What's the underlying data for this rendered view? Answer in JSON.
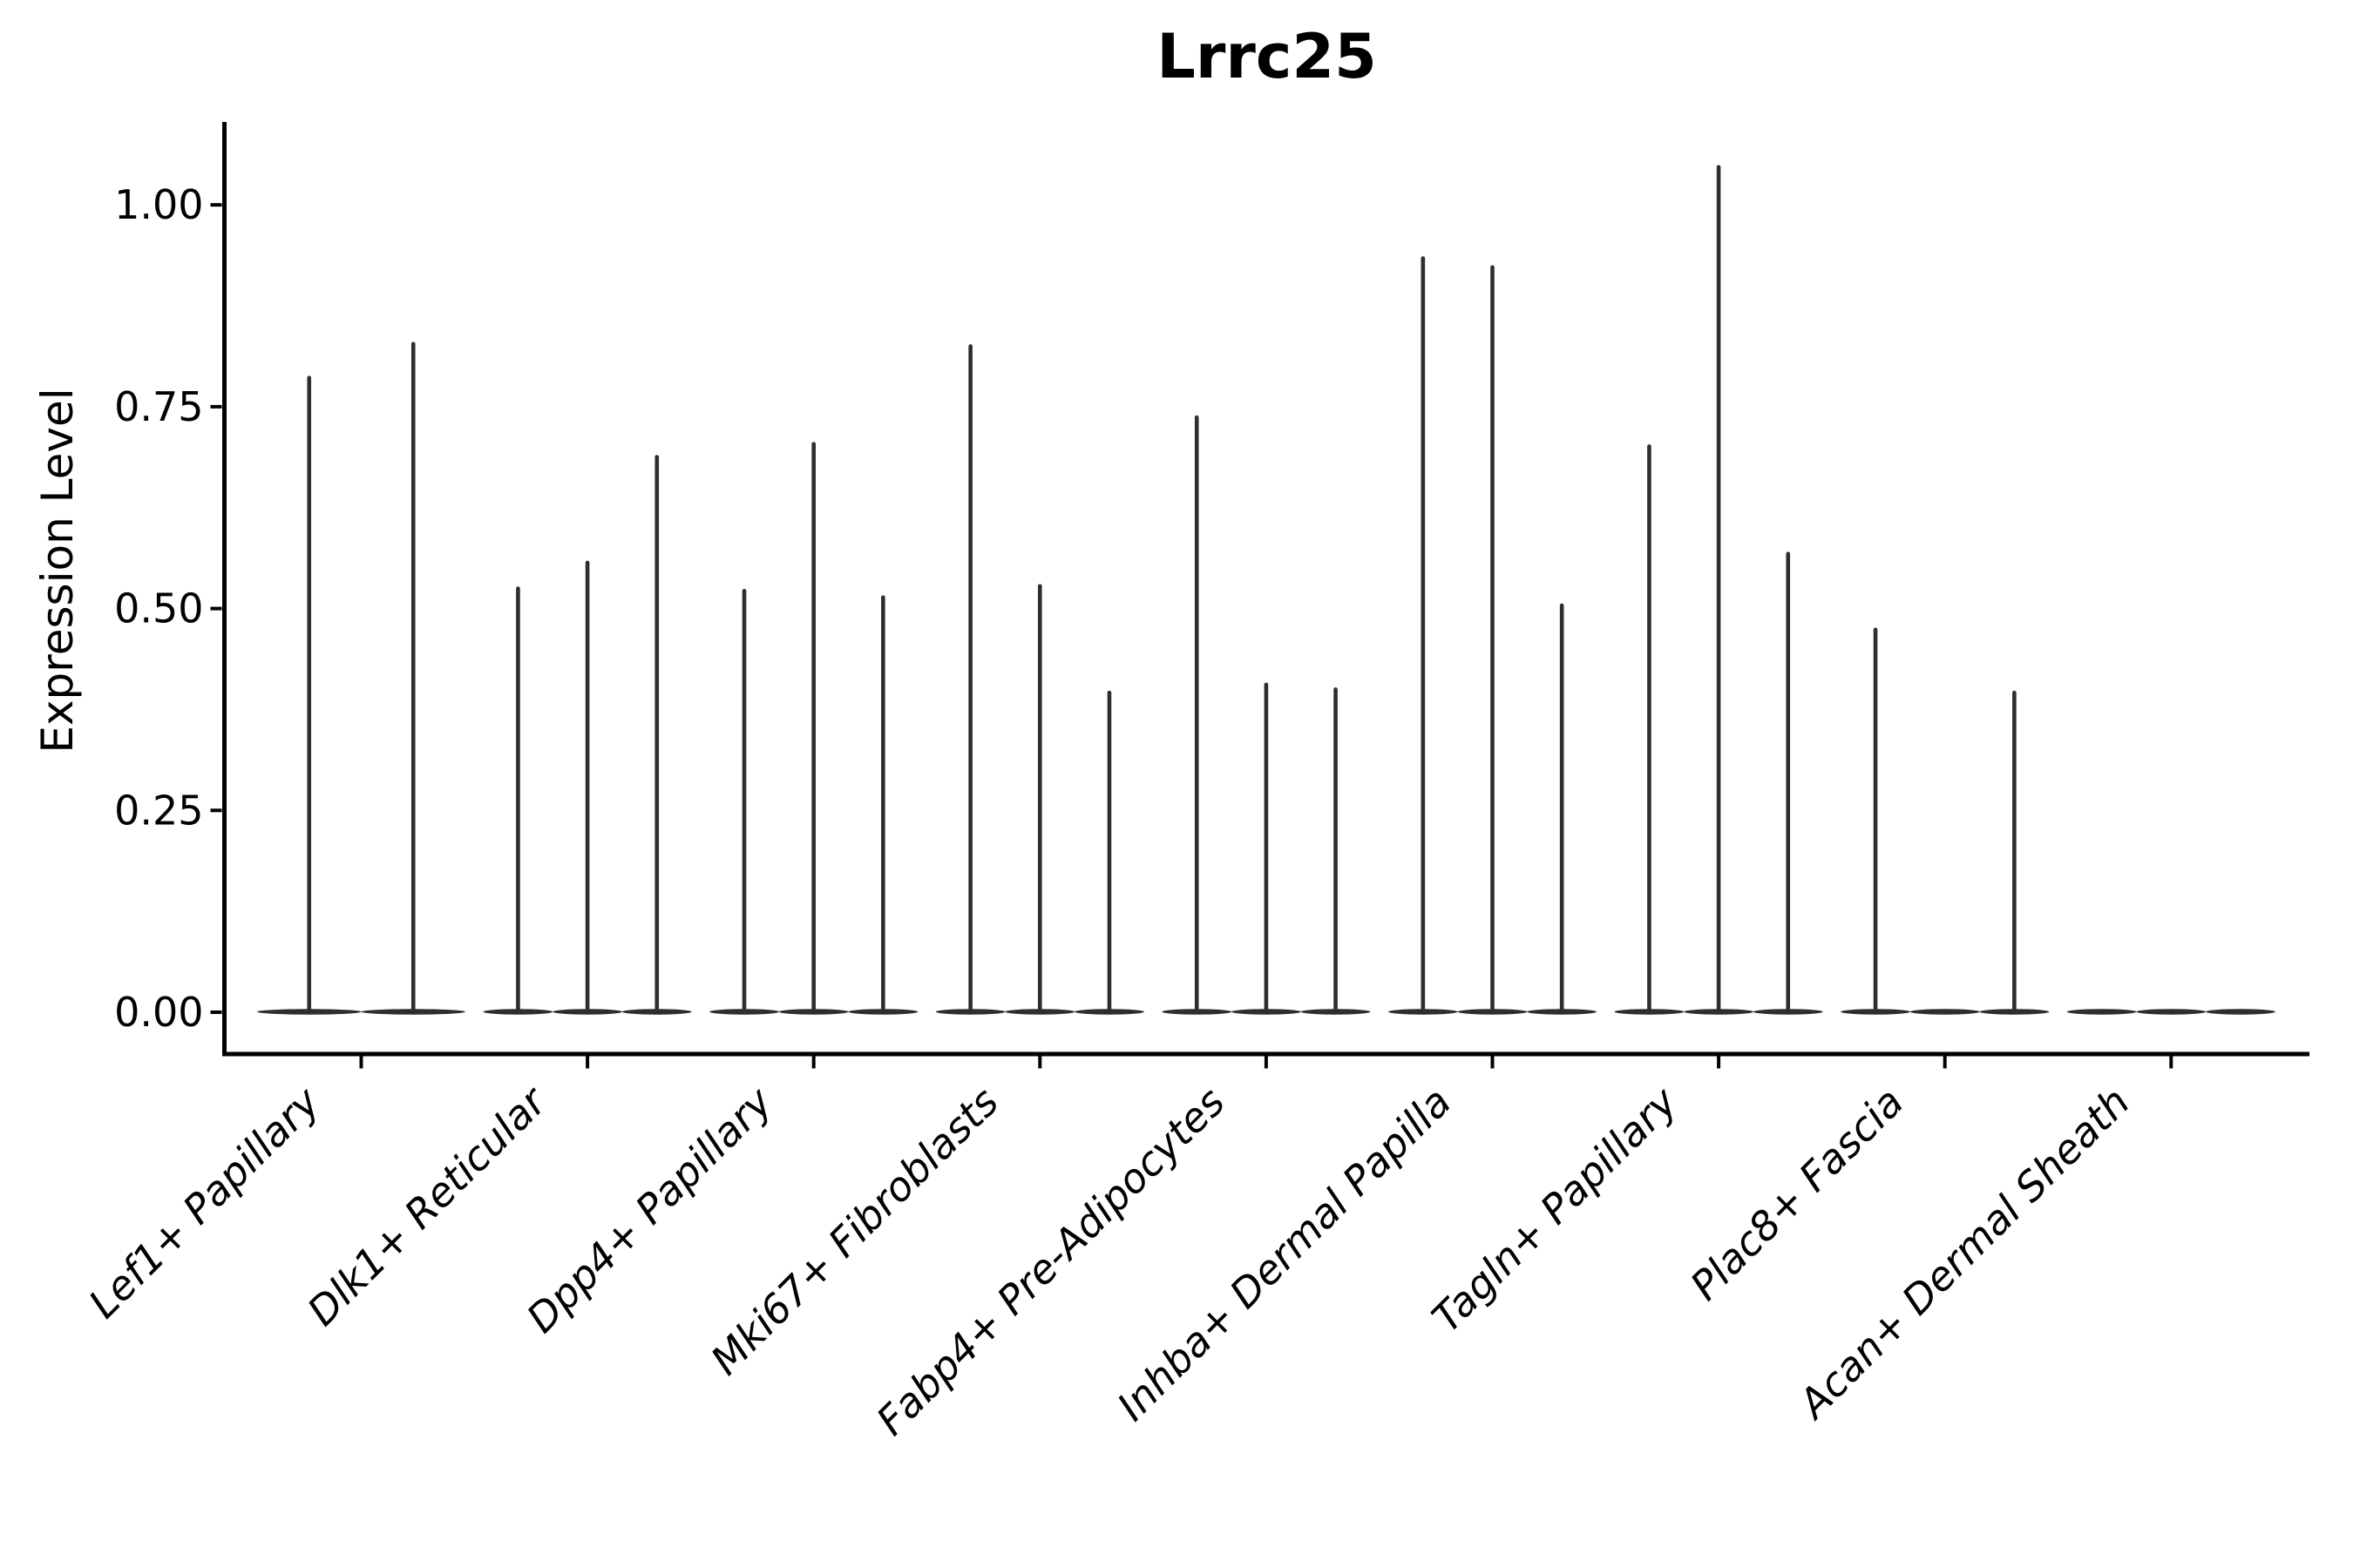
{
  "title": "Lrrc25",
  "ylabel": "Expression Level",
  "chart_data": {
    "type": "violin",
    "title": "Lrrc25",
    "xlabel": "",
    "ylabel": "Expression Level",
    "ylim": [
      -0.05,
      1.1
    ],
    "grid": false,
    "legend": null,
    "ytick_values": [
      0.0,
      0.25,
      0.5,
      0.75,
      1.0
    ],
    "ytick_labels": [
      "0.00",
      "0.25",
      "0.50",
      "0.75",
      "1.00"
    ],
    "categories": [
      "Lef1+ Papillary",
      "Dlk1+ Reticular",
      "Dpp4+ Papillary",
      "Mki67+ Fibroblasts",
      "Fabp4+ Pre-Adipocytes",
      "Inhba+ Dermal Papilla",
      "Tagln+ Papillary",
      "Plac8+ Fascia",
      "Acan+ Dermal Sheath"
    ],
    "groups": [
      {
        "label": "Lef1+ Papillary",
        "violin_max_expression": [
          0.788,
          0.83
        ]
      },
      {
        "label": "Dlk1+ Reticular",
        "violin_max_expression": [
          0.527,
          0.559,
          0.69
        ]
      },
      {
        "label": "Dpp4+ Papillary",
        "violin_max_expression": [
          0.524,
          0.706,
          0.516
        ]
      },
      {
        "label": "Mki67+ Fibroblasts",
        "violin_max_expression": [
          0.827,
          0.53,
          0.398
        ]
      },
      {
        "label": "Fabp4+ Pre-Adipocytes",
        "violin_max_expression": [
          0.739,
          0.408,
          0.402
        ]
      },
      {
        "label": "Inhba+ Dermal Papilla",
        "violin_max_expression": [
          0.936,
          0.925,
          0.506
        ]
      },
      {
        "label": "Tagln+ Papillary",
        "violin_max_expression": [
          0.703,
          1.049,
          0.57
        ]
      },
      {
        "label": "Plac8+ Fascia",
        "violin_max_expression": [
          0.476,
          0.0,
          0.398
        ]
      },
      {
        "label": "Acan+ Dermal Sheath",
        "violin_max_expression": [
          0.0,
          0.0,
          0.0
        ]
      }
    ],
    "colors": {
      "violin": "#2e2e2e",
      "axis": "#000000",
      "text": "#000000",
      "background": "#ffffff"
    }
  }
}
